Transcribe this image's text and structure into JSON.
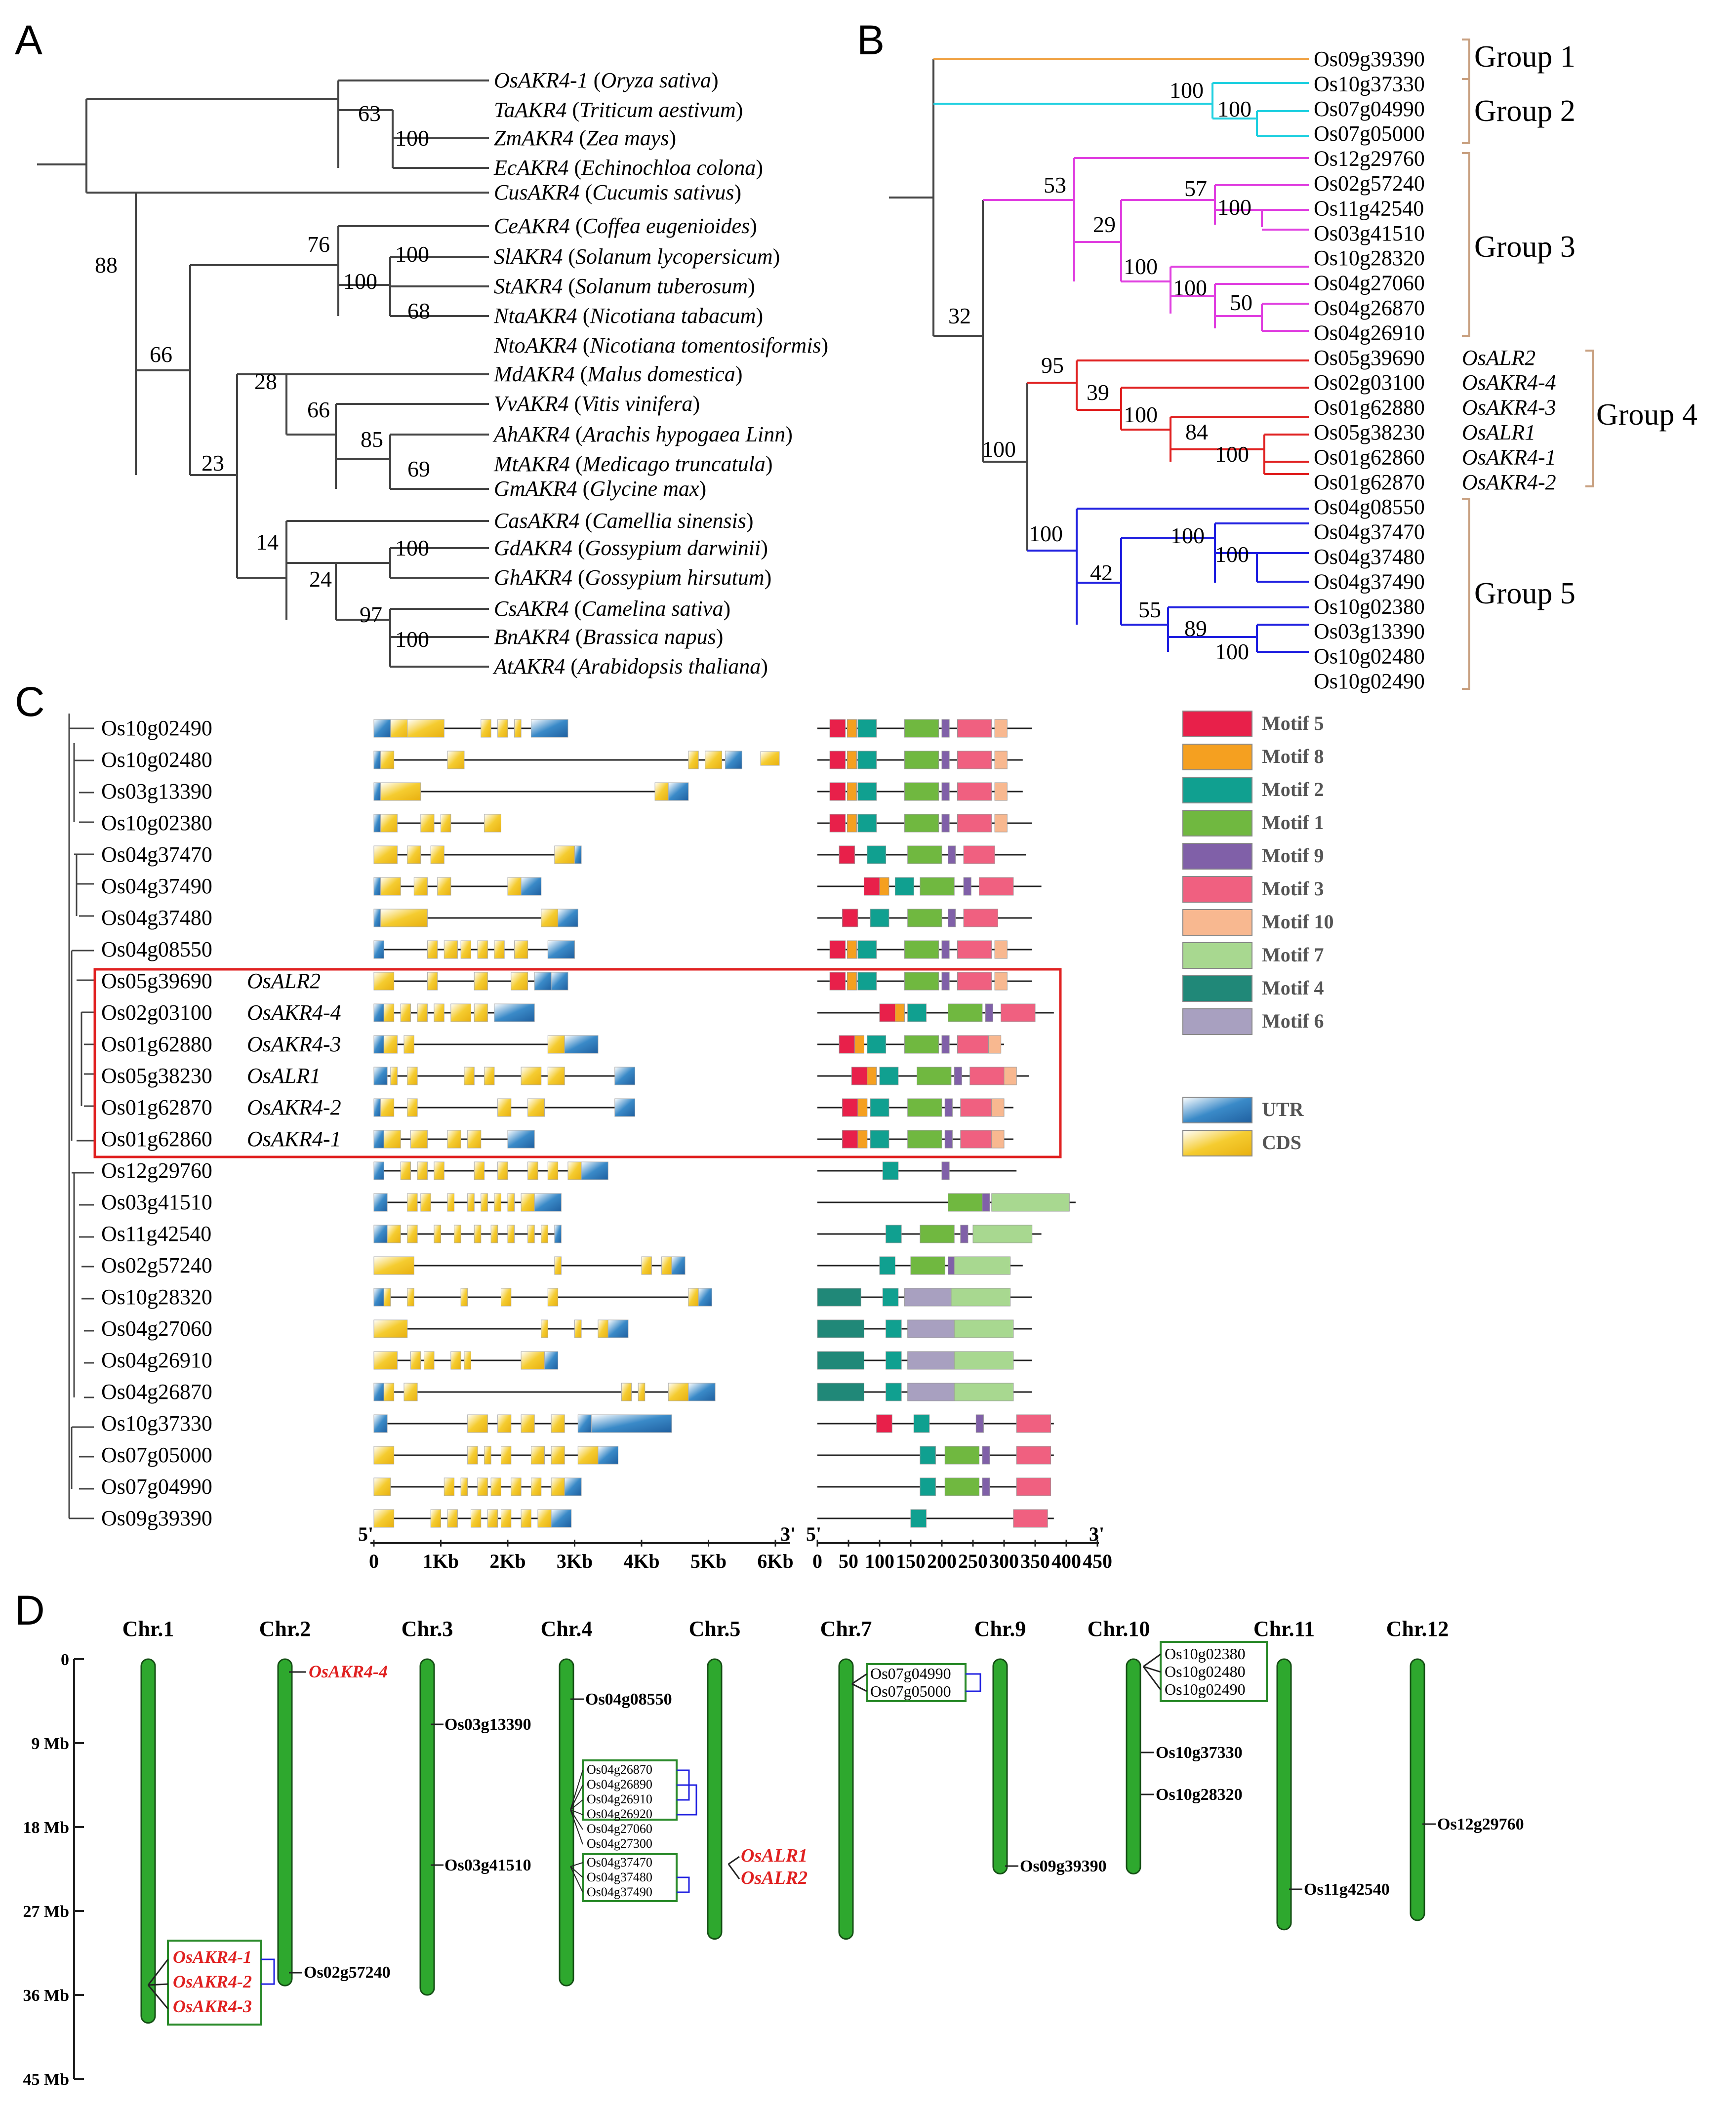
{
  "panels": {
    "a": "A",
    "b": "B",
    "c": "C",
    "d": "D"
  },
  "panel_a": {
    "taxa": [
      {
        "gene": "OsAKR4-1",
        "species": "Oryza sativa"
      },
      {
        "gene": "TaAKR4",
        "species": "Triticum aestivum"
      },
      {
        "gene": "ZmAKR4",
        "species": "Zea mays"
      },
      {
        "gene": "EcAKR4",
        "species": "Echinochloa colona"
      },
      {
        "gene": "CusAKR4",
        "species": "Cucumis sativus"
      },
      {
        "gene": "CeAKR4",
        "species": "Coffea eugenioides"
      },
      {
        "gene": "SlAKR4",
        "species": "Solanum lycopersicum"
      },
      {
        "gene": "StAKR4",
        "species": "Solanum tuberosum"
      },
      {
        "gene": "NtaAKR4",
        "species": "Nicotiana tabacum"
      },
      {
        "gene": "NtoAKR4",
        "species": "Nicotiana tomentosiformis"
      },
      {
        "gene": "MdAKR4",
        "species": "Malus domestica"
      },
      {
        "gene": "VvAKR4",
        "species": "Vitis vinifera"
      },
      {
        "gene": "AhAKR4",
        "species": "Arachis hypogaea Linn"
      },
      {
        "gene": "MtAKR4",
        "species": "Medicago truncatula"
      },
      {
        "gene": "GmAKR4",
        "species": "Glycine max"
      },
      {
        "gene": "CasAKR4",
        "species": "Camellia sinensis"
      },
      {
        "gene": "GdAKR4",
        "species": "Gossypium darwinii"
      },
      {
        "gene": "GhAKR4",
        "species": "Gossypium hirsutum"
      },
      {
        "gene": "CsAKR4",
        "species": "Camelina sativa"
      },
      {
        "gene": "BnAKR4",
        "species": "Brassica napus"
      },
      {
        "gene": "AtAKR4",
        "species": "Arabidopsis thaliana"
      }
    ],
    "bootstraps": [
      "63",
      "100",
      "88",
      "76",
      "100",
      "100",
      "68",
      "66",
      "28",
      "66",
      "85",
      "69",
      "23",
      "14",
      "100",
      "24",
      "97",
      "100"
    ]
  },
  "panel_b": {
    "tips": [
      "Os09g39390",
      "Os10g37330",
      "Os07g04990",
      "Os07g05000",
      "Os12g29760",
      "Os02g57240",
      "Os11g42540",
      "Os03g41510",
      "Os10g28320",
      "Os04g27060",
      "Os04g26870",
      "Os04g26910",
      "Os05g39690",
      "Os02g03100",
      "Os01g62880",
      "Os05g38230",
      "Os01g62860",
      "Os01g62870",
      "Os04g08550",
      "Os04g37470",
      "Os04g37480",
      "Os04g37490",
      "Os10g02380",
      "Os03g13390",
      "Os10g02480",
      "Os10g02490"
    ],
    "aliases": {
      "Os05g39690": "OsALR2",
      "Os02g03100": "OsAKR4-4",
      "Os01g62880": "OsAKR4-3",
      "Os05g38230": "OsALR1",
      "Os01g62860": "OsAKR4-1",
      "Os01g62870": "OsAKR4-2"
    },
    "groups": [
      "Group 1",
      "Group 2",
      "Group 3",
      "Group 4",
      "Group 5"
    ],
    "group_colors": [
      "#f0a040",
      "#20d0e0",
      "#e040e0",
      "#e02020",
      "#2020e0"
    ],
    "bootstraps": [
      "100",
      "100",
      "53",
      "57",
      "29",
      "100",
      "100",
      "100",
      "50",
      "32",
      "95",
      "39",
      "100",
      "84",
      "100",
      "100",
      "100",
      "100",
      "100",
      "42",
      "55",
      "89",
      "100"
    ]
  },
  "panel_c": {
    "genes": [
      {
        "id": "Os10g02490",
        "alias": ""
      },
      {
        "id": "Os10g02480",
        "alias": ""
      },
      {
        "id": "Os03g13390",
        "alias": ""
      },
      {
        "id": "Os10g02380",
        "alias": ""
      },
      {
        "id": "Os04g37470",
        "alias": ""
      },
      {
        "id": "Os04g37490",
        "alias": ""
      },
      {
        "id": "Os04g37480",
        "alias": ""
      },
      {
        "id": "Os04g08550",
        "alias": ""
      },
      {
        "id": "Os05g39690",
        "alias": "OsALR2"
      },
      {
        "id": "Os02g03100",
        "alias": "OsAKR4-4"
      },
      {
        "id": "Os01g62880",
        "alias": "OsAKR4-3"
      },
      {
        "id": "Os05g38230",
        "alias": "OsALR1"
      },
      {
        "id": "Os01g62870",
        "alias": "OsAKR4-2"
      },
      {
        "id": "Os01g62860",
        "alias": "OsAKR4-1"
      },
      {
        "id": "Os12g29760",
        "alias": ""
      },
      {
        "id": "Os03g41510",
        "alias": ""
      },
      {
        "id": "Os11g42540",
        "alias": ""
      },
      {
        "id": "Os02g57240",
        "alias": ""
      },
      {
        "id": "Os10g28320",
        "alias": ""
      },
      {
        "id": "Os04g27060",
        "alias": ""
      },
      {
        "id": "Os04g26910",
        "alias": ""
      },
      {
        "id": "Os04g26870",
        "alias": ""
      },
      {
        "id": "Os10g37330",
        "alias": ""
      },
      {
        "id": "Os07g05000",
        "alias": ""
      },
      {
        "id": "Os07g04990",
        "alias": ""
      },
      {
        "id": "Os09g39390",
        "alias": ""
      }
    ],
    "legend": [
      {
        "label": "Motif 5",
        "color": "#e8204a"
      },
      {
        "label": "Motif 8",
        "color": "#f5a020"
      },
      {
        "label": "Motif 2",
        "color": "#10a090"
      },
      {
        "label": "Motif 1",
        "color": "#70b840"
      },
      {
        "label": "Motif 9",
        "color": "#8060a8"
      },
      {
        "label": "Motif 3",
        "color": "#f06080"
      },
      {
        "label": "Motif 10",
        "color": "#f8b890"
      },
      {
        "label": "Motif 7",
        "color": "#a8d890"
      },
      {
        "label": "Motif 4",
        "color": "#208878"
      },
      {
        "label": "Motif 6",
        "color": "#a8a0c0"
      }
    ],
    "structure_legend": [
      {
        "label": "UTR",
        "color": "#3080c0"
      },
      {
        "label": "CDS",
        "color": "#f0c020"
      }
    ],
    "gene_axis": {
      "five": "5'",
      "three": "3'",
      "ticks": [
        "0",
        "1Kb",
        "2Kb",
        "3Kb",
        "4Kb",
        "5Kb",
        "6Kb"
      ]
    },
    "motif_axis": {
      "five": "5'",
      "three": "3'",
      "ticks": [
        "0",
        "50",
        "100",
        "150",
        "200",
        "250",
        "300",
        "350",
        "400",
        "450"
      ]
    }
  },
  "panel_d": {
    "chromosomes": [
      {
        "name": "Chr.1",
        "length_mb": 39
      },
      {
        "name": "Chr.2",
        "length_mb": 35
      },
      {
        "name": "Chr.3",
        "length_mb": 36
      },
      {
        "name": "Chr.4",
        "length_mb": 35
      },
      {
        "name": "Chr.5",
        "length_mb": 30
      },
      {
        "name": "Chr.7",
        "length_mb": 30
      },
      {
        "name": "Chr.9",
        "length_mb": 23
      },
      {
        "name": "Chr.10",
        "length_mb": 23
      },
      {
        "name": "Chr.11",
        "length_mb": 29
      },
      {
        "name": "Chr.12",
        "length_mb": 28
      }
    ],
    "scale": [
      "0",
      "9 Mb",
      "18 Mb",
      "27 Mb",
      "36 Mb",
      "45 Mb"
    ],
    "genes": {
      "chr1": [
        "OsAKR4-1",
        "OsAKR4-2",
        "OsAKR4-3"
      ],
      "chr2": [
        "OsAKR4-4",
        "Os02g57240"
      ],
      "chr3": [
        "Os03g13390",
        "Os03g41510"
      ],
      "chr4_single": "Os04g08550",
      "chr4_cluster1": [
        "Os04g26870",
        "Os04g26890",
        "Os04g26910",
        "Os04g26920",
        "Os04g27060",
        "Os04g27300"
      ],
      "chr4_cluster2": [
        "Os04g37470",
        "Os04g37480",
        "Os04g37490"
      ],
      "chr5": [
        "OsALR1",
        "OsALR2"
      ],
      "chr7": [
        "Os07g04990",
        "Os07g05000"
      ],
      "chr9": [
        "Os09g39390"
      ],
      "chr10_cluster": [
        "Os10g02380",
        "Os10g02480",
        "Os10g02490"
      ],
      "chr10": [
        "Os10g37330",
        "Os10g28320"
      ],
      "chr11": [
        "Os11g42540"
      ],
      "chr12": [
        "Os12g29760"
      ]
    }
  }
}
